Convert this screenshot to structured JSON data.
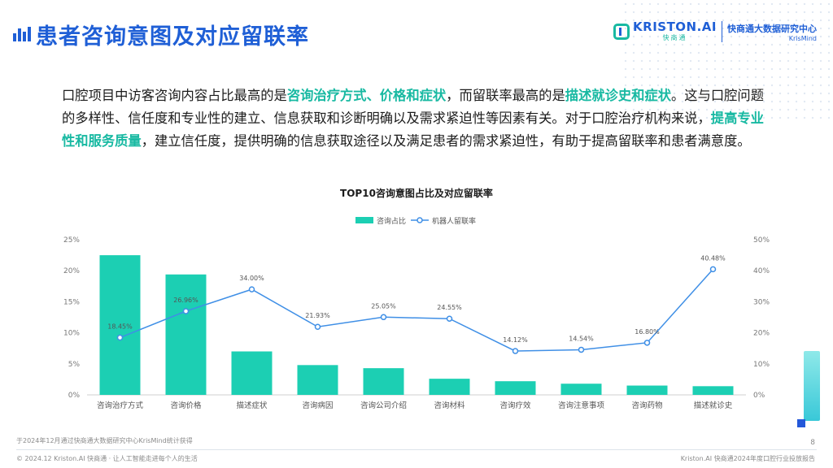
{
  "header": {
    "title": "患者咨询意图及对应留联率"
  },
  "brand": {
    "name": "KRISTON.AI",
    "sub": "快商通",
    "center": "快商通大数据研究中心",
    "center_sub": "KrisMind"
  },
  "paragraph": {
    "p1": "口腔项目中访客咨询内容占比最高的是",
    "h1": "咨询治疗方式、价格和症状",
    "p2": "，而留联率最高的是",
    "h2": "描述就诊史和症状",
    "p3": "。这与口腔问题的多样性、信任度和专业性的建立、信息获取和诊断明确以及需求紧迫性等因素有关。对于口腔治疗机构来说，",
    "h3": "提高专业性和服务质量",
    "p4": "，建立信任度，提供明确的信息获取途径以及满足患者的需求紧迫性，有助于提高留联率和患者满意度。"
  },
  "chart_data": {
    "type": "bar",
    "title": "TOP10咨询意图占比及对应留联率",
    "categories": [
      "咨询治疗方式",
      "咨询价格",
      "描述症状",
      "咨询病因",
      "咨询公司介绍",
      "咨询材料",
      "咨询疗效",
      "咨询注意事项",
      "咨询药物",
      "描述就诊史"
    ],
    "series": [
      {
        "name": "咨询占比",
        "type": "bar",
        "axis": "left",
        "color": "#1ccfb3",
        "values": [
          22.5,
          19.4,
          7.0,
          4.8,
          4.3,
          2.6,
          2.2,
          1.8,
          1.5,
          1.4
        ]
      },
      {
        "name": "机器人留联率",
        "type": "line",
        "axis": "right",
        "color": "#3f8fe6",
        "values": [
          18.45,
          26.96,
          34.0,
          21.93,
          25.05,
          24.55,
          14.12,
          14.54,
          16.8,
          40.48
        ],
        "labels": [
          "18.45%",
          "26.96%",
          "34.00%",
          "21.93%",
          "25.05%",
          "24.55%",
          "14.12%",
          "14.54%",
          "16.80%",
          "40.48%"
        ]
      }
    ],
    "ylim_left": [
      0,
      25
    ],
    "ylim_right": [
      0,
      50
    ],
    "left_ticks": [
      "0%",
      "5%",
      "10%",
      "15%",
      "20%",
      "25%"
    ],
    "right_ticks": [
      "0%",
      "10%",
      "20%",
      "30%",
      "40%",
      "50%"
    ],
    "legend": "top-center",
    "grid": false
  },
  "footer": {
    "note": "于2024年12月通过快商通大数据研究中心KrisMind统计获得",
    "left": "© 2024.12 Kriston.AI 快商通 · 让人工智能走进每个人的生活",
    "right": "Kriston.AI 快商通2024年度口腔行业投放报告",
    "page": "8"
  }
}
